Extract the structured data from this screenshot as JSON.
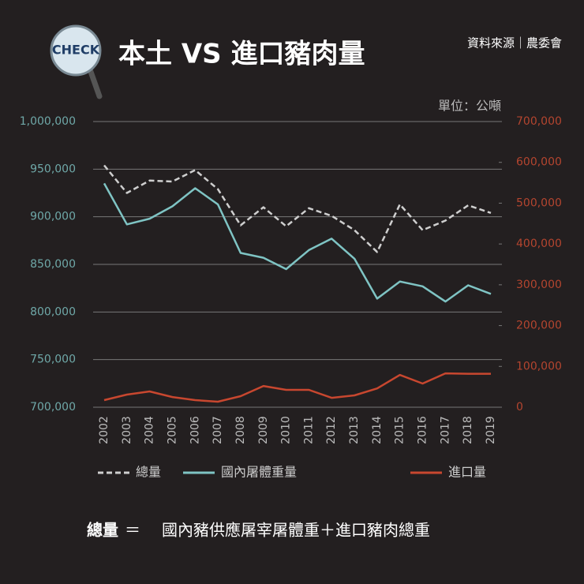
{
  "chart_data": {
    "type": "line",
    "logo": "CHECK",
    "title": "本土 VS 進口豬肉量",
    "source": "資料來源｜農委會",
    "unit_label": "單位：公噸",
    "categories": [
      "2002",
      "2003",
      "2004",
      "2005",
      "2006",
      "2007",
      "2008",
      "2009",
      "2010",
      "2011",
      "2012",
      "2013",
      "2014",
      "2015",
      "2016",
      "2017",
      "2018",
      "2019"
    ],
    "series": [
      {
        "name": "總量",
        "color": "#cfcfcf",
        "dashed": true,
        "axis": "y",
        "values": [
          954000,
          925000,
          938000,
          937000,
          949000,
          929000,
          891000,
          910000,
          890000,
          909000,
          901000,
          886000,
          863000,
          913000,
          886000,
          896000,
          912000,
          904000
        ]
      },
      {
        "name": "國內屠體重量",
        "color": "#7fc4c4",
        "axis": "y",
        "values": [
          935000,
          892000,
          898000,
          911000,
          930000,
          913000,
          862000,
          857000,
          845000,
          865000,
          877000,
          856000,
          814000,
          832000,
          827000,
          811000,
          828000,
          819000
        ]
      },
      {
        "name": "進口量",
        "color": "#c8472f",
        "axis": "y2",
        "values": [
          17400,
          31000,
          38700,
          25000,
          17400,
          13500,
          27000,
          52000,
          42500,
          42500,
          23000,
          29000,
          46000,
          79000,
          58000,
          83000,
          82000,
          82000
        ]
      }
    ],
    "ylim": [
      700000,
      1000000
    ],
    "yticks": [
      {
        "value": 700000,
        "label": "700,000"
      },
      {
        "value": 750000,
        "label": "750,000"
      },
      {
        "value": 800000,
        "label": "800,000"
      },
      {
        "value": 850000,
        "label": "850,000"
      },
      {
        "value": 900000,
        "label": "900,000"
      },
      {
        "value": 950000,
        "label": "950,000"
      },
      {
        "value": 1000000,
        "label": "1,000,000"
      }
    ],
    "y2lim": [
      0,
      700000
    ],
    "y2ticks": [
      0,
      {
        "value": 100000,
        "label": "100,000"
      },
      {
        "value": 200000,
        "label": "200,000"
      },
      {
        "value": 300000,
        "label": "300,000"
      },
      {
        "value": 400000,
        "label": "400,000"
      },
      {
        "value": 500000,
        "label": "500,000"
      },
      {
        "value": 600000,
        "label": "600,000"
      },
      {
        "value": 700000,
        "label": "700,000"
      }
    ],
    "grid": true,
    "footnote": {
      "term": "總量",
      "equals": "＝",
      "definition": "國內豬供應屠宰屠體重＋進口豬肉總重"
    }
  }
}
